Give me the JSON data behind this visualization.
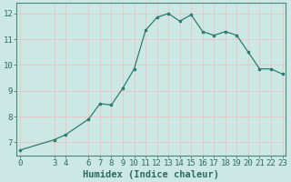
{
  "xlabel": "Humidex (Indice chaleur)",
  "background_color": "#cce8e4",
  "grid_color": "#e8c8c8",
  "line_color": "#2e7d6e",
  "marker_color": "#2e7d6e",
  "x_data": [
    0,
    3,
    4,
    6,
    7,
    8,
    9,
    10,
    11,
    12,
    13,
    14,
    15,
    16,
    17,
    18,
    19,
    20,
    21,
    22,
    23
  ],
  "y_data": [
    6.7,
    7.1,
    7.3,
    7.9,
    8.5,
    8.45,
    9.1,
    9.85,
    11.35,
    11.85,
    12.0,
    11.7,
    11.95,
    11.3,
    11.15,
    11.3,
    11.15,
    10.5,
    9.85,
    9.85,
    9.65
  ],
  "xlim": [
    -0.3,
    23.3
  ],
  "ylim": [
    6.5,
    12.4
  ],
  "yticks": [
    7,
    8,
    9,
    10,
    11,
    12
  ],
  "xticks": [
    0,
    3,
    4,
    6,
    7,
    8,
    9,
    10,
    11,
    12,
    13,
    14,
    15,
    16,
    17,
    18,
    19,
    20,
    21,
    22,
    23
  ],
  "xtick_labels": [
    "0",
    "3",
    "4",
    "6",
    "7",
    "8",
    "9",
    "10",
    "11",
    "12",
    "13",
    "14",
    "15",
    "16",
    "17",
    "18",
    "19",
    "20",
    "21",
    "22",
    "23"
  ],
  "tick_color": "#2e6b5e",
  "fontsize_ticks": 6.5,
  "fontsize_label": 7.5
}
